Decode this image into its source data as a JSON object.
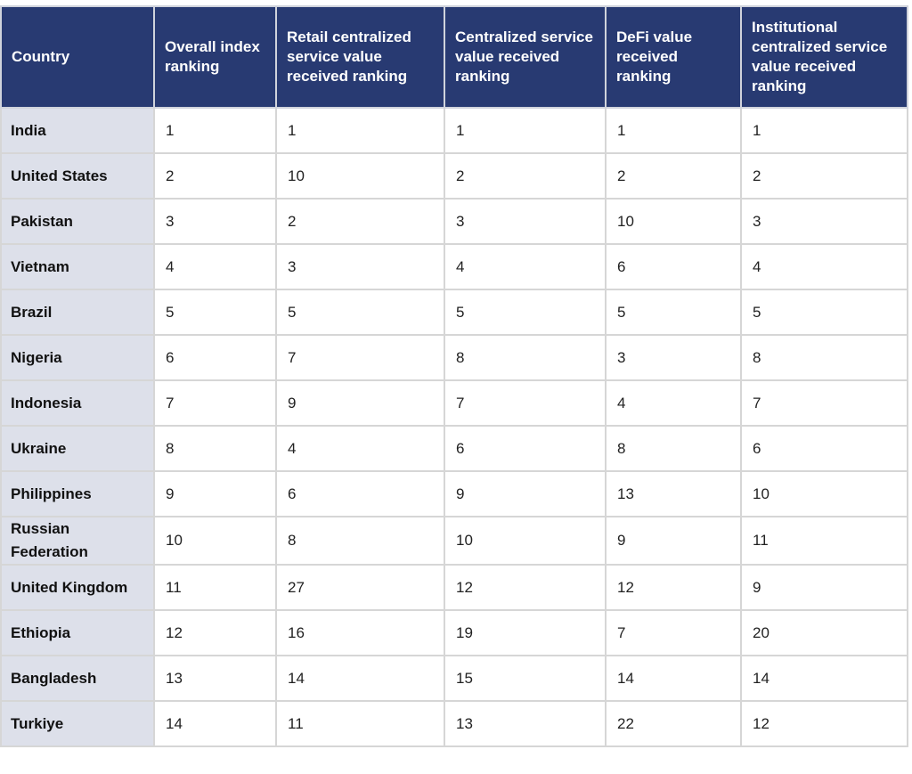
{
  "table": {
    "header": [
      "Country",
      "Overall index ranking",
      "Retail centralized service value received ranking",
      "Centralized service value received ranking",
      "DeFi value received ranking",
      "Institutional centralized service value received ranking"
    ],
    "rows": [
      [
        "India",
        1,
        1,
        1,
        1,
        1
      ],
      [
        "United States",
        2,
        10,
        2,
        2,
        2
      ],
      [
        "Pakistan",
        3,
        2,
        3,
        10,
        3
      ],
      [
        "Vietnam",
        4,
        3,
        4,
        6,
        4
      ],
      [
        "Brazil",
        5,
        5,
        5,
        5,
        5
      ],
      [
        "Nigeria",
        6,
        7,
        8,
        3,
        8
      ],
      [
        "Indonesia",
        7,
        9,
        7,
        4,
        7
      ],
      [
        "Ukraine",
        8,
        4,
        6,
        8,
        6
      ],
      [
        "Philippines",
        9,
        6,
        9,
        13,
        10
      ],
      [
        "Russian Federation",
        10,
        8,
        10,
        9,
        11
      ],
      [
        "United Kingdom",
        11,
        27,
        12,
        12,
        9
      ],
      [
        "Ethiopia",
        12,
        16,
        19,
        7,
        20
      ],
      [
        "Bangladesh",
        13,
        14,
        15,
        14,
        14
      ],
      [
        "Turkiye",
        14,
        11,
        13,
        22,
        12
      ]
    ]
  }
}
